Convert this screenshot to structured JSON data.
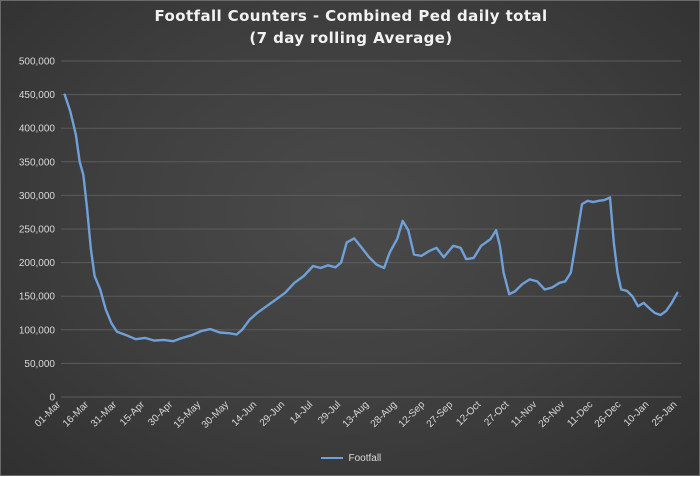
{
  "chart_data": {
    "type": "line",
    "title": "Footfall Counters - Combined Ped daily total",
    "subtitle": "(7 day rolling Average)",
    "xlabel": "",
    "ylabel": "",
    "ylim": [
      0,
      500000
    ],
    "yticks": [
      "0",
      "50,000",
      "100,000",
      "150,000",
      "200,000",
      "250,000",
      "300,000",
      "350,000",
      "400,000",
      "450,000",
      "500,000"
    ],
    "xticks": [
      "01-Mar",
      "16-Mar",
      "31-Mar",
      "15-Apr",
      "30-Apr",
      "15-May",
      "30-May",
      "14-Jun",
      "29-Jun",
      "14-Jul",
      "29-Jul",
      "13-Aug",
      "28-Aug",
      "12-Sep",
      "27-Sep",
      "12-Oct",
      "27-Oct",
      "11-Nov",
      "26-Nov",
      "11-Dec",
      "26-Dec",
      "10-Jan",
      "25-Jan"
    ],
    "grid": true,
    "legend_position": "bottom",
    "color": "#6fa0d8",
    "series": [
      {
        "name": "Footfall",
        "points": [
          [
            "03-Mar",
            450000
          ],
          [
            "06-Mar",
            425000
          ],
          [
            "09-Mar",
            390000
          ],
          [
            "11-Mar",
            350000
          ],
          [
            "13-Mar",
            330000
          ],
          [
            "15-Mar",
            280000
          ],
          [
            "17-Mar",
            220000
          ],
          [
            "19-Mar",
            180000
          ],
          [
            "22-Mar",
            160000
          ],
          [
            "25-Mar",
            130000
          ],
          [
            "28-Mar",
            110000
          ],
          [
            "31-Mar",
            97000
          ],
          [
            "05-Apr",
            92000
          ],
          [
            "10-Apr",
            86000
          ],
          [
            "15-Apr",
            88000
          ],
          [
            "20-Apr",
            84000
          ],
          [
            "25-Apr",
            85000
          ],
          [
            "30-Apr",
            83000
          ],
          [
            "05-May",
            88000
          ],
          [
            "10-May",
            92000
          ],
          [
            "15-May",
            98000
          ],
          [
            "20-May",
            101000
          ],
          [
            "25-May",
            96000
          ],
          [
            "30-May",
            95000
          ],
          [
            "03-Jun",
            93000
          ],
          [
            "06-Jun",
            100000
          ],
          [
            "10-Jun",
            115000
          ],
          [
            "14-Jun",
            125000
          ],
          [
            "19-Jun",
            135000
          ],
          [
            "24-Jun",
            145000
          ],
          [
            "29-Jun",
            155000
          ],
          [
            "04-Jul",
            170000
          ],
          [
            "09-Jul",
            180000
          ],
          [
            "14-Jul",
            195000
          ],
          [
            "18-Jul",
            192000
          ],
          [
            "22-Jul",
            196000
          ],
          [
            "26-Jul",
            193000
          ],
          [
            "29-Jul",
            200000
          ],
          [
            "01-Aug",
            230000
          ],
          [
            "05-Aug",
            236000
          ],
          [
            "09-Aug",
            222000
          ],
          [
            "13-Aug",
            208000
          ],
          [
            "17-Aug",
            197000
          ],
          [
            "21-Aug",
            192000
          ],
          [
            "24-Aug",
            215000
          ],
          [
            "28-Aug",
            235000
          ],
          [
            "31-Aug",
            262000
          ],
          [
            "03-Sep",
            248000
          ],
          [
            "06-Sep",
            212000
          ],
          [
            "10-Sep",
            210000
          ],
          [
            "14-Sep",
            217000
          ],
          [
            "18-Sep",
            222000
          ],
          [
            "22-Sep",
            208000
          ],
          [
            "27-Sep",
            225000
          ],
          [
            "01-Oct",
            222000
          ],
          [
            "04-Oct",
            205000
          ],
          [
            "08-Oct",
            207000
          ],
          [
            "12-Oct",
            225000
          ],
          [
            "17-Oct",
            235000
          ],
          [
            "20-Oct",
            248000
          ],
          [
            "22-Oct",
            225000
          ],
          [
            "24-Oct",
            185000
          ],
          [
            "27-Oct",
            153000
          ],
          [
            "30-Oct",
            157000
          ],
          [
            "03-Nov",
            168000
          ],
          [
            "07-Nov",
            175000
          ],
          [
            "11-Nov",
            172000
          ],
          [
            "15-Nov",
            160000
          ],
          [
            "19-Nov",
            163000
          ],
          [
            "23-Nov",
            170000
          ],
          [
            "26-Nov",
            172000
          ],
          [
            "29-Nov",
            185000
          ],
          [
            "02-Dec",
            235000
          ],
          [
            "05-Dec",
            287000
          ],
          [
            "08-Dec",
            292000
          ],
          [
            "11-Dec",
            290000
          ],
          [
            "14-Dec",
            292000
          ],
          [
            "17-Dec",
            293000
          ],
          [
            "20-Dec",
            297000
          ],
          [
            "22-Dec",
            230000
          ],
          [
            "24-Dec",
            185000
          ],
          [
            "26-Dec",
            160000
          ],
          [
            "29-Dec",
            158000
          ],
          [
            "01-Jan",
            150000
          ],
          [
            "04-Jan",
            135000
          ],
          [
            "07-Jan",
            140000
          ],
          [
            "10-Jan",
            132000
          ],
          [
            "13-Jan",
            125000
          ],
          [
            "16-Jan",
            122000
          ],
          [
            "19-Jan",
            128000
          ],
          [
            "22-Jan",
            140000
          ],
          [
            "25-Jan",
            155000
          ]
        ]
      }
    ]
  }
}
